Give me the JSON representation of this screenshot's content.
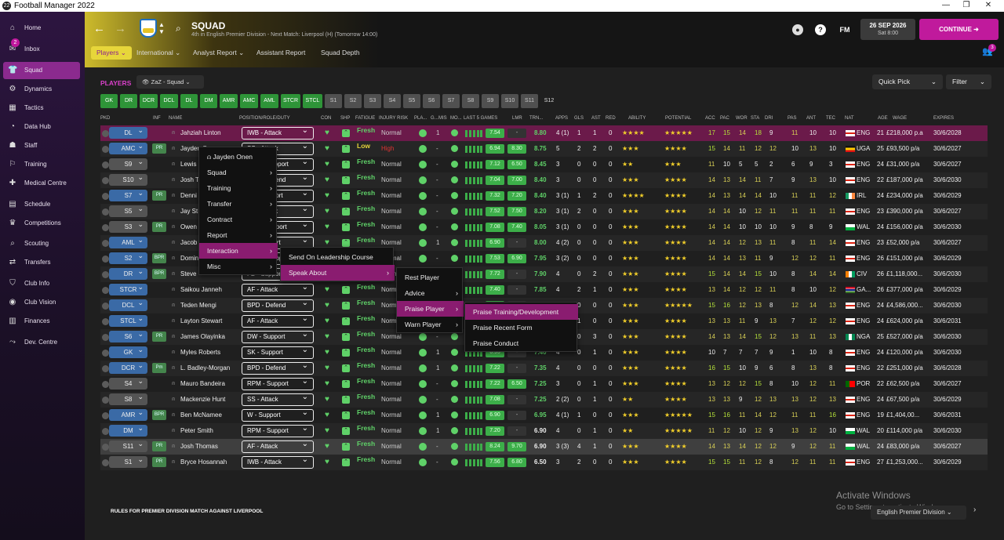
{
  "window": {
    "title": "Football Manager 2022",
    "app_icon": "22"
  },
  "sidebar": {
    "items": [
      {
        "label": "Home",
        "icon": "home-icon",
        "glyph": "⌂"
      },
      {
        "label": "Inbox",
        "icon": "inbox-icon",
        "glyph": "✉",
        "badge": "2"
      },
      {
        "label": "Squad",
        "icon": "squad-icon",
        "glyph": "👕",
        "active": true
      },
      {
        "label": "Dynamics",
        "icon": "dynamics-icon",
        "glyph": "⚙"
      },
      {
        "label": "Tactics",
        "icon": "tactics-icon",
        "glyph": "▦"
      },
      {
        "label": "Data Hub",
        "icon": "datahub-icon",
        "glyph": "◔"
      },
      {
        "label": "Staff",
        "icon": "staff-icon",
        "glyph": "☗"
      },
      {
        "label": "Training",
        "icon": "training-icon",
        "glyph": "⚐"
      },
      {
        "label": "Medical Centre",
        "icon": "medical-icon",
        "glyph": "✚"
      },
      {
        "label": "Schedule",
        "icon": "schedule-icon",
        "glyph": "▤"
      },
      {
        "label": "Competitions",
        "icon": "trophy-icon",
        "glyph": "♛"
      },
      {
        "label": "Scouting",
        "icon": "scouting-icon",
        "glyph": "⌕"
      },
      {
        "label": "Transfers",
        "icon": "transfers-icon",
        "glyph": "⇄"
      },
      {
        "label": "Club Info",
        "icon": "clubinfo-icon",
        "glyph": "⛉"
      },
      {
        "label": "Club Vision",
        "icon": "vision-icon",
        "glyph": "◉"
      },
      {
        "label": "Finances",
        "icon": "finances-icon",
        "glyph": "▥"
      },
      {
        "label": "Dev. Centre",
        "icon": "devcentre-icon",
        "glyph": "⤳"
      }
    ]
  },
  "header": {
    "title": "SQUAD",
    "subtitle": "4th in English Premier Division - Next Match: Liverpool (H) (Tomorrow 14:00)",
    "date": "26 SEP 2026",
    "time": "Sat 8:00",
    "continue_label": "CONTINUE",
    "fm_label": "FM",
    "help_label": "?",
    "notifications": "3",
    "tabs": [
      "Players",
      "International",
      "Analyst Report",
      "Assistant Report",
      "Squad Depth"
    ]
  },
  "toolbar": {
    "players_label": "PLAYERS",
    "view": "ZaZ - Squad",
    "quick_pick": "Quick Pick",
    "filter": "Filter"
  },
  "positions": [
    "GK",
    "DR",
    "DCR",
    "DCL",
    "DL",
    "DM",
    "AMR",
    "AMC",
    "AML",
    "STCR",
    "STCL",
    "S1",
    "S2",
    "S3",
    "S4",
    "S5",
    "S6",
    "S7",
    "S8",
    "S9",
    "S10",
    "S11",
    "S12"
  ],
  "columns": [
    "PKD",
    "INF",
    "NAME",
    "POSITION/ROLE/DUTY",
    "CON",
    "SHP",
    "FATIGUE",
    "INJURY RISK",
    "PLA...",
    "G...",
    "MIS",
    "MO...",
    "LAST 5 GAMES",
    "LMR",
    "TRN...",
    "APPS",
    "GLS",
    "AST",
    "RED",
    "ABILITY",
    "POTENTIAL",
    "ACC",
    "PAC",
    "WOR",
    "STA",
    "DRI",
    "PAS",
    "ANT",
    "TEC",
    "NAT",
    "AGE",
    "WAGE",
    "EXPIRES"
  ],
  "players": [
    {
      "pos": "DL",
      "inf": "",
      "name": "Jahziah Linton",
      "role": "IWB - Attack",
      "fatigue": "Fresh",
      "injury": "Normal",
      "g": "1",
      "r1": "7.54",
      "lmr": "-",
      "trn": "8.80",
      "apps": "4 (1)",
      "gls": "1",
      "ast": "1",
      "red": "0",
      "ability": "★★★★",
      "potential": "★★★★★",
      "acc": "17",
      "pac": "15",
      "wor": "14",
      "sta": "18",
      "dri": "9",
      "pas": "11",
      "ant": "10",
      "tec": "10",
      "nat": "ENG",
      "age": "21",
      "wage": "£218,000 p.a",
      "exp": "30/6/2028"
    },
    {
      "pos": "AMC",
      "inf": "PR",
      "name": "Jayden Onen",
      "role": "SS - Attack",
      "fatigue": "Low",
      "injury": "High",
      "g": "-",
      "r1": "6.94",
      "lmr": "8.30",
      "trn": "8.75",
      "apps": "5",
      "gls": "2",
      "ast": "2",
      "red": "0",
      "ability": "★★★",
      "potential": "★★★★",
      "acc": "15",
      "pac": "14",
      "wor": "11",
      "sta": "12",
      "dri": "12",
      "pas": "10",
      "ant": "13",
      "tec": "10",
      "nat": "UGA",
      "age": "25",
      "wage": "£93,500 p/a",
      "exp": "30/6/2027"
    },
    {
      "pos": "S9",
      "inf": "",
      "name": "Lewis",
      "role": "RPM - Support",
      "fatigue": "Fresh",
      "injury": "Normal",
      "g": "-",
      "r1": "7.12",
      "lmr": "6.50",
      "trn": "8.45",
      "apps": "3",
      "gls": "0",
      "ast": "0",
      "red": "0",
      "ability": "★★",
      "potential": "★★★",
      "acc": "11",
      "pac": "10",
      "wor": "5",
      "sta": "5",
      "dri": "2",
      "pas": "6",
      "ant": "9",
      "tec": "3",
      "nat": "ENG",
      "age": "24",
      "wage": "£31,000 p/a",
      "exp": "30/6/2027"
    },
    {
      "pos": "S10",
      "inf": "",
      "name": "Josh T",
      "role": "BPD - Defend",
      "fatigue": "Fresh",
      "injury": "Normal",
      "g": "-",
      "r1": "7.04",
      "lmr": "7.00",
      "trn": "8.40",
      "apps": "3",
      "gls": "0",
      "ast": "0",
      "red": "0",
      "ability": "★★★",
      "potential": "★★★★",
      "acc": "14",
      "pac": "13",
      "wor": "14",
      "sta": "11",
      "dri": "7",
      "pas": "9",
      "ant": "13",
      "tec": "10",
      "nat": "ENG",
      "age": "22",
      "wage": "£187,000 p/a",
      "exp": "30/6/2030"
    },
    {
      "pos": "S7",
      "inf": "PR",
      "name": "Denni",
      "role": "AP - Support",
      "fatigue": "Fresh",
      "injury": "Normal",
      "g": "-",
      "r1": "7.32",
      "lmr": "7.20",
      "trn": "8.40",
      "apps": "3 (1)",
      "gls": "1",
      "ast": "2",
      "red": "0",
      "ability": "★★★★",
      "potential": "★★★★",
      "acc": "14",
      "pac": "13",
      "wor": "14",
      "sta": "14",
      "dri": "10",
      "pas": "11",
      "ant": "11",
      "tec": "12",
      "nat": "IRL",
      "age": "24",
      "wage": "£234,000 p/a",
      "exp": "30/6/2029"
    },
    {
      "pos": "S5",
      "inf": "",
      "name": "Jay St",
      "role": "AF - Attack",
      "fatigue": "Fresh",
      "injury": "Normal",
      "g": "-",
      "r1": "7.52",
      "lmr": "7.50",
      "trn": "8.20",
      "apps": "3 (1)",
      "gls": "2",
      "ast": "0",
      "red": "0",
      "ability": "★★★",
      "potential": "★★★★",
      "acc": "14",
      "pac": "14",
      "wor": "10",
      "sta": "12",
      "dri": "11",
      "pas": "11",
      "ant": "11",
      "tec": "11",
      "nat": "ENG",
      "age": "23",
      "wage": "£390,000 p/a",
      "exp": "30/6/2027"
    },
    {
      "pos": "S3",
      "inf": "PR",
      "name": "Owen",
      "role": "DLP - Support",
      "fatigue": "Fresh",
      "injury": "Normal",
      "g": "-",
      "r1": "7.08",
      "lmr": "7.40",
      "trn": "8.05",
      "apps": "3 (1)",
      "gls": "0",
      "ast": "0",
      "red": "0",
      "ability": "★★★",
      "potential": "★★★★",
      "acc": "14",
      "pac": "14",
      "wor": "10",
      "sta": "10",
      "dri": "10",
      "pas": "9",
      "ant": "8",
      "tec": "9",
      "nat": "WAL",
      "age": "24",
      "wage": "£156,000 p/a",
      "exp": "30/6/2030"
    },
    {
      "pos": "AML",
      "inf": "",
      "name": "Jacob",
      "role": "W - Support",
      "fatigue": "Fresh",
      "injury": "Normal",
      "g": "1",
      "r1": "6.90",
      "lmr": "-",
      "trn": "8.00",
      "apps": "4 (2)",
      "gls": "0",
      "ast": "0",
      "red": "0",
      "ability": "★★★",
      "potential": "★★★★",
      "acc": "14",
      "pac": "14",
      "wor": "12",
      "sta": "13",
      "dri": "11",
      "pas": "8",
      "ant": "11",
      "tec": "14",
      "nat": "ENG",
      "age": "23",
      "wage": "£52,000 p/a",
      "exp": "30/6/2027"
    },
    {
      "pos": "S2",
      "inf": "BPR",
      "name": "Domin",
      "role": "BWM - Support",
      "fatigue": "Fresh",
      "injury": "Normal",
      "g": "-",
      "r1": "7.53",
      "lmr": "6.90",
      "trn": "7.95",
      "apps": "3 (2)",
      "gls": "0",
      "ast": "0",
      "red": "0",
      "ability": "★★★",
      "potential": "★★★★",
      "acc": "14",
      "pac": "14",
      "wor": "13",
      "sta": "11",
      "dri": "9",
      "pas": "12",
      "ant": "12",
      "tec": "11",
      "nat": "ENG",
      "age": "26",
      "wage": "£151,000 p/a",
      "exp": "30/6/2029"
    },
    {
      "pos": "DR",
      "inf": "BPR",
      "name": "Steve",
      "role": "FB - Support",
      "fatigue": "Fresh",
      "injury": "Normal",
      "g": "-",
      "r1": "7.72",
      "lmr": "-",
      "trn": "7.90",
      "apps": "4",
      "gls": "0",
      "ast": "2",
      "red": "0",
      "ability": "★★★",
      "potential": "★★★★",
      "acc": "15",
      "pac": "14",
      "wor": "14",
      "sta": "15",
      "dri": "10",
      "pas": "8",
      "ant": "14",
      "tec": "14",
      "nat": "CIV",
      "age": "26",
      "wage": "£1,118,000...",
      "exp": "30/6/2030"
    },
    {
      "pos": "STCR",
      "inf": "",
      "name": "Saikou Janneh",
      "role": "AF - Attack",
      "fatigue": "Fresh",
      "injury": "Normal",
      "g": "-",
      "r1": "7.40",
      "lmr": "-",
      "trn": "7.85",
      "apps": "4",
      "gls": "2",
      "ast": "1",
      "red": "0",
      "ability": "★★★",
      "potential": "★★★★",
      "acc": "13",
      "pac": "14",
      "wor": "12",
      "sta": "12",
      "dri": "11",
      "pas": "8",
      "ant": "10",
      "tec": "12",
      "nat": "GA...",
      "age": "26",
      "wage": "£377,000 p/a",
      "exp": "30/6/2029"
    },
    {
      "pos": "DCL",
      "inf": "",
      "name": "Teden Mengi",
      "role": "BPD - Defend",
      "fatigue": "Fresh",
      "injury": "Normal",
      "g": "-",
      "r1": "7.10",
      "lmr": "-",
      "trn": "7.80",
      "apps": "4",
      "gls": "0",
      "ast": "0",
      "red": "0",
      "ability": "★★★",
      "potential": "★★★★★",
      "acc": "15",
      "pac": "16",
      "wor": "12",
      "sta": "13",
      "dri": "8",
      "pas": "12",
      "ant": "14",
      "tec": "13",
      "nat": "ENG",
      "age": "24",
      "wage": "£4,586,000...",
      "exp": "30/6/2030"
    },
    {
      "pos": "STCL",
      "inf": "",
      "name": "Layton Stewart",
      "role": "AF - Attack",
      "fatigue": "Fresh",
      "injury": "Normal",
      "g": "-",
      "r1": "7.05",
      "lmr": "-",
      "trn": "7.75",
      "apps": "3",
      "gls": "1",
      "ast": "0",
      "red": "0",
      "ability": "★★★",
      "potential": "★★★★",
      "acc": "13",
      "pac": "13",
      "wor": "11",
      "sta": "9",
      "dri": "13",
      "pas": "7",
      "ant": "12",
      "tec": "12",
      "nat": "ENG",
      "age": "24",
      "wage": "£624,000 p/a",
      "exp": "30/6/2031"
    },
    {
      "pos": "S6",
      "inf": "PR",
      "name": "James Olayinka",
      "role": "DW - Support",
      "fatigue": "Fresh",
      "injury": "Normal",
      "g": "-",
      "r1": "7.00",
      "lmr": "-",
      "trn": "7.70",
      "apps": "3",
      "gls": "0",
      "ast": "3",
      "red": "0",
      "ability": "★★★",
      "potential": "★★★★",
      "acc": "14",
      "pac": "13",
      "wor": "14",
      "sta": "15",
      "dri": "12",
      "pas": "13",
      "ant": "11",
      "tec": "13",
      "nat": "NGA",
      "age": "25",
      "wage": "£527,000 p/a",
      "exp": "30/6/2030"
    },
    {
      "pos": "GK",
      "inf": "",
      "name": "Myles Roberts",
      "role": "SK - Support",
      "fatigue": "Fresh",
      "injury": "Normal",
      "g": "1",
      "r1": "6.95",
      "lmr": "-",
      "trn": "7.40",
      "apps": "4",
      "gls": "0",
      "ast": "1",
      "red": "0",
      "ability": "★★★",
      "potential": "★★★★",
      "acc": "10",
      "pac": "7",
      "wor": "7",
      "sta": "7",
      "dri": "9",
      "pas": "1",
      "ant": "10",
      "tec": "8",
      "nat": "ENG",
      "age": "24",
      "wage": "£120,000 p/a",
      "exp": "30/6/2030"
    },
    {
      "pos": "DCR",
      "inf": "Pm",
      "name": "L. Badley-Morgan",
      "role": "BPD - Defend",
      "fatigue": "Fresh",
      "injury": "Normal",
      "g": "1",
      "r1": "7.22",
      "lmr": "-",
      "trn": "7.35",
      "apps": "4",
      "gls": "0",
      "ast": "0",
      "red": "0",
      "ability": "★★★",
      "potential": "★★★★",
      "acc": "16",
      "pac": "15",
      "wor": "10",
      "sta": "9",
      "dri": "6",
      "pas": "8",
      "ant": "13",
      "tec": "8",
      "nat": "ENG",
      "age": "22",
      "wage": "£251,000 p/a",
      "exp": "30/6/2028"
    },
    {
      "pos": "S4",
      "inf": "",
      "name": "Mauro Bandeira",
      "role": "RPM - Support",
      "fatigue": "Fresh",
      "injury": "Normal",
      "g": "-",
      "r1": "7.22",
      "lmr": "6.50",
      "trn": "7.25",
      "apps": "3",
      "gls": "0",
      "ast": "1",
      "red": "0",
      "ability": "★★★",
      "potential": "★★★★",
      "acc": "13",
      "pac": "12",
      "wor": "12",
      "sta": "15",
      "dri": "8",
      "pas": "10",
      "ant": "12",
      "tec": "11",
      "nat": "POR",
      "age": "22",
      "wage": "£62,500 p/a",
      "exp": "30/6/2027"
    },
    {
      "pos": "S8",
      "inf": "",
      "name": "Mackenzie Hunt",
      "role": "SS - Attack",
      "fatigue": "Fresh",
      "injury": "Normal",
      "g": "-",
      "r1": "7.08",
      "lmr": "-",
      "trn": "7.25",
      "apps": "2 (2)",
      "gls": "0",
      "ast": "1",
      "red": "0",
      "ability": "★★",
      "potential": "★★★★",
      "acc": "13",
      "pac": "13",
      "wor": "9",
      "sta": "12",
      "dri": "13",
      "pas": "13",
      "ant": "12",
      "tec": "13",
      "nat": "ENG",
      "age": "24",
      "wage": "£67,500 p/a",
      "exp": "30/6/2029"
    },
    {
      "pos": "AMR",
      "inf": "BPR",
      "name": "Ben McNamee",
      "role": "W - Support",
      "fatigue": "Fresh",
      "injury": "Normal",
      "g": "1",
      "r1": "6.90",
      "lmr": "-",
      "trn": "6.95",
      "apps": "4 (1)",
      "gls": "1",
      "ast": "0",
      "red": "0",
      "ability": "★★★",
      "potential": "★★★★★",
      "acc": "15",
      "pac": "16",
      "wor": "11",
      "sta": "14",
      "dri": "12",
      "pas": "11",
      "ant": "11",
      "tec": "16",
      "nat": "ENG",
      "age": "19",
      "wage": "£1,404,00...",
      "exp": "30/6/2031"
    },
    {
      "pos": "DM",
      "inf": "",
      "name": "Peter Smith",
      "role": "RPM - Support",
      "fatigue": "Fresh",
      "injury": "Normal",
      "g": "1",
      "r1": "7.20",
      "lmr": "-",
      "trn": "6.90",
      "apps": "4",
      "gls": "0",
      "ast": "1",
      "red": "0",
      "ability": "★★",
      "potential": "★★★★★",
      "acc": "11",
      "pac": "12",
      "wor": "10",
      "sta": "12",
      "dri": "9",
      "pas": "13",
      "ant": "12",
      "tec": "10",
      "nat": "WAL",
      "age": "20",
      "wage": "£114,000 p/a",
      "exp": "30/6/2030"
    },
    {
      "pos": "S11",
      "inf": "PR",
      "name": "Josh Thomas",
      "role": "AF - Attack",
      "fatigue": "Fresh",
      "injury": "Normal",
      "g": "-",
      "r1": "8.24",
      "lmr": "9.70",
      "trn": "6.90",
      "apps": "3 (3)",
      "gls": "4",
      "ast": "1",
      "red": "0",
      "ability": "★★★",
      "potential": "★★★★",
      "acc": "14",
      "pac": "13",
      "wor": "14",
      "sta": "12",
      "dri": "12",
      "pas": "9",
      "ant": "12",
      "tec": "11",
      "nat": "WAL",
      "age": "24",
      "wage": "£83,000 p/a",
      "exp": "30/6/2027"
    },
    {
      "pos": "S1",
      "inf": "PR",
      "name": "Bryce Hosannah",
      "role": "IWB - Attack",
      "fatigue": "Fresh",
      "injury": "Normal",
      "g": "-",
      "r1": "7.56",
      "lmr": "6.80",
      "trn": "6.50",
      "apps": "3",
      "gls": "2",
      "ast": "0",
      "red": "0",
      "ability": "★★★",
      "potential": "★★★★",
      "acc": "15",
      "pac": "15",
      "wor": "11",
      "sta": "12",
      "dri": "8",
      "pas": "12",
      "ant": "11",
      "tec": "11",
      "nat": "ENG",
      "age": "27",
      "wage": "£1,253,000...",
      "exp": "30/6/2029"
    }
  ],
  "context_menu": {
    "main": [
      {
        "label": "Jayden Onen"
      },
      {
        "label": "Squad"
      },
      {
        "label": "Training"
      },
      {
        "label": "Transfer"
      },
      {
        "label": "Contract"
      },
      {
        "label": "Report"
      },
      {
        "label": "Interaction"
      },
      {
        "label": "Misc"
      }
    ],
    "interaction": [
      {
        "label": "Send On Leadership Course"
      },
      {
        "label": "Speak About"
      }
    ],
    "speak_about": [
      {
        "label": "Rest Player"
      },
      {
        "label": "Advice"
      },
      {
        "label": "Praise Player"
      },
      {
        "label": "Warn Player"
      }
    ],
    "praise_player": [
      {
        "label": "Praise Training/Development"
      },
      {
        "label": "Praise Recent Form"
      },
      {
        "label": "Praise Conduct"
      }
    ]
  },
  "footer": {
    "rules": "RULES FOR PREMIER DIVISION MATCH AGAINST LIVERPOOL",
    "league": "English Premier Division"
  },
  "watermark": {
    "line1": "Activate Windows",
    "line2": "Go to Settings to activate Windows."
  }
}
